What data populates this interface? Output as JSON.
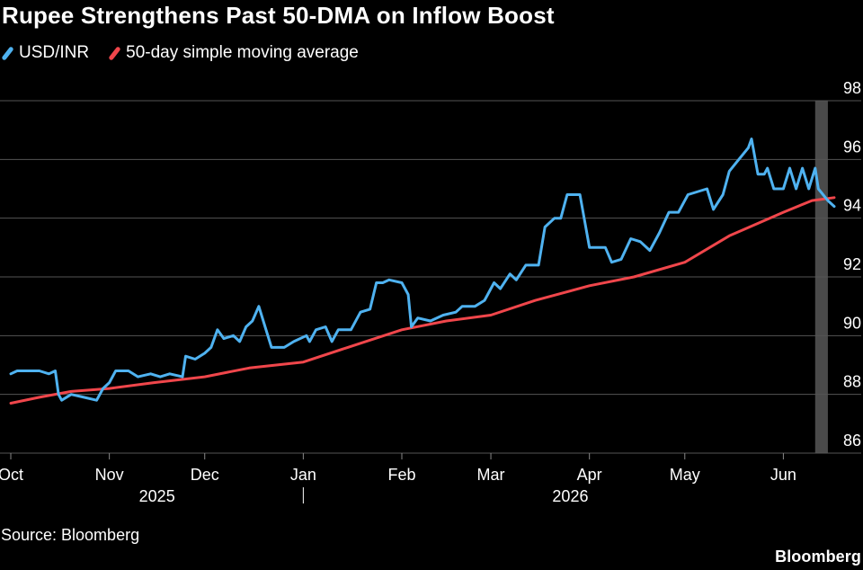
{
  "header": {
    "title": "Rupee Strengthens Past 50-DMA on Inflow Boost"
  },
  "footer": {
    "source": "Source: Bloomberg",
    "brand": "Bloomberg"
  },
  "colors": {
    "background": "#000000",
    "usdinr": "#4fb2f0",
    "sma": "#f0464b",
    "grid": "#555555",
    "highlight": "#4a4a4a"
  },
  "chart_data": {
    "type": "line",
    "legend_placement": "top-left",
    "grid": true,
    "ylim": [
      86,
      98
    ],
    "yticks": [
      98,
      96,
      94,
      92,
      90,
      88,
      86
    ],
    "x_range": [
      "2025-10-01",
      "2026-06-17"
    ],
    "x_ticks": [
      {
        "label": "Oct",
        "date": "2025-10-01"
      },
      {
        "label": "Nov",
        "date": "2025-11-01"
      },
      {
        "label": "Dec",
        "date": "2025-12-01"
      },
      {
        "label": "Jan",
        "date": "2026-01-01"
      },
      {
        "label": "Feb",
        "date": "2026-02-01"
      },
      {
        "label": "Mar",
        "date": "2026-03-01"
      },
      {
        "label": "Apr",
        "date": "2026-04-01"
      },
      {
        "label": "May",
        "date": "2026-05-01"
      },
      {
        "label": "Jun",
        "date": "2026-06-01"
      }
    ],
    "year_labels": [
      {
        "label": "2025",
        "date": "2025-11-16"
      },
      {
        "label": "2026",
        "date": "2026-03-26"
      }
    ],
    "year_separator_date": "2026-01-01",
    "highlight_range": [
      "2026-06-11",
      "2026-06-15"
    ],
    "series": [
      {
        "name": "USD/INR",
        "color": "#4fb2f0",
        "points": [
          [
            "2025-10-01",
            88.7
          ],
          [
            "2025-10-03",
            88.8
          ],
          [
            "2025-10-07",
            88.8
          ],
          [
            "2025-10-10",
            88.8
          ],
          [
            "2025-10-13",
            88.7
          ],
          [
            "2025-10-15",
            88.8
          ],
          [
            "2025-10-16",
            88.0
          ],
          [
            "2025-10-17",
            87.8
          ],
          [
            "2025-10-20",
            88.0
          ],
          [
            "2025-10-24",
            87.9
          ],
          [
            "2025-10-28",
            87.8
          ],
          [
            "2025-10-30",
            88.2
          ],
          [
            "2025-11-01",
            88.4
          ],
          [
            "2025-11-03",
            88.8
          ],
          [
            "2025-11-07",
            88.8
          ],
          [
            "2025-11-10",
            88.6
          ],
          [
            "2025-11-14",
            88.7
          ],
          [
            "2025-11-17",
            88.6
          ],
          [
            "2025-11-20",
            88.7
          ],
          [
            "2025-11-24",
            88.6
          ],
          [
            "2025-11-25",
            89.3
          ],
          [
            "2025-11-28",
            89.2
          ],
          [
            "2025-12-01",
            89.4
          ],
          [
            "2025-12-03",
            89.6
          ],
          [
            "2025-12-05",
            90.2
          ],
          [
            "2025-12-07",
            89.9
          ],
          [
            "2025-12-10",
            90.0
          ],
          [
            "2025-12-12",
            89.8
          ],
          [
            "2025-12-14",
            90.3
          ],
          [
            "2025-12-16",
            90.5
          ],
          [
            "2025-12-18",
            91.0
          ],
          [
            "2025-12-20",
            90.3
          ],
          [
            "2025-12-22",
            89.6
          ],
          [
            "2025-12-26",
            89.6
          ],
          [
            "2025-12-29",
            89.8
          ],
          [
            "2026-01-02",
            90.0
          ],
          [
            "2026-01-03",
            89.8
          ],
          [
            "2026-01-05",
            90.2
          ],
          [
            "2026-01-08",
            90.3
          ],
          [
            "2026-01-10",
            89.8
          ],
          [
            "2026-01-12",
            90.2
          ],
          [
            "2026-01-16",
            90.2
          ],
          [
            "2026-01-19",
            90.8
          ],
          [
            "2026-01-22",
            90.9
          ],
          [
            "2026-01-24",
            91.8
          ],
          [
            "2026-01-26",
            91.8
          ],
          [
            "2026-01-28",
            91.9
          ],
          [
            "2026-02-01",
            91.8
          ],
          [
            "2026-02-03",
            91.4
          ],
          [
            "2026-02-04",
            90.3
          ],
          [
            "2026-02-06",
            90.6
          ],
          [
            "2026-02-10",
            90.5
          ],
          [
            "2026-02-14",
            90.7
          ],
          [
            "2026-02-18",
            90.8
          ],
          [
            "2026-02-20",
            91.0
          ],
          [
            "2026-02-24",
            91.0
          ],
          [
            "2026-02-27",
            91.2
          ],
          [
            "2026-03-02",
            91.8
          ],
          [
            "2026-03-04",
            91.6
          ],
          [
            "2026-03-07",
            92.1
          ],
          [
            "2026-03-09",
            91.9
          ],
          [
            "2026-03-12",
            92.4
          ],
          [
            "2026-03-16",
            92.4
          ],
          [
            "2026-03-18",
            93.7
          ],
          [
            "2026-03-21",
            94.0
          ],
          [
            "2026-03-23",
            94.0
          ],
          [
            "2026-03-25",
            94.8
          ],
          [
            "2026-03-29",
            94.8
          ],
          [
            "2026-04-01",
            93.0
          ],
          [
            "2026-04-06",
            93.0
          ],
          [
            "2026-04-08",
            92.5
          ],
          [
            "2026-04-11",
            92.6
          ],
          [
            "2026-04-14",
            93.3
          ],
          [
            "2026-04-17",
            93.2
          ],
          [
            "2026-04-20",
            92.9
          ],
          [
            "2026-04-23",
            93.5
          ],
          [
            "2026-04-26",
            94.2
          ],
          [
            "2026-04-29",
            94.2
          ],
          [
            "2026-05-02",
            94.8
          ],
          [
            "2026-05-08",
            95.0
          ],
          [
            "2026-05-10",
            94.3
          ],
          [
            "2026-05-13",
            94.8
          ],
          [
            "2026-05-15",
            95.6
          ],
          [
            "2026-05-18",
            96.0
          ],
          [
            "2026-05-21",
            96.4
          ],
          [
            "2026-05-22",
            96.7
          ],
          [
            "2026-05-24",
            95.5
          ],
          [
            "2026-05-26",
            95.5
          ],
          [
            "2026-05-27",
            95.7
          ],
          [
            "2026-05-29",
            95.0
          ],
          [
            "2026-06-01",
            95.0
          ],
          [
            "2026-06-03",
            95.7
          ],
          [
            "2026-06-05",
            95.0
          ],
          [
            "2026-06-07",
            95.7
          ],
          [
            "2026-06-09",
            95.0
          ],
          [
            "2026-06-11",
            95.7
          ],
          [
            "2026-06-12",
            95.0
          ],
          [
            "2026-06-15",
            94.6
          ],
          [
            "2026-06-17",
            94.4
          ]
        ]
      },
      {
        "name": "50-day simple moving average",
        "color": "#f0464b",
        "points": [
          [
            "2025-10-01",
            87.7
          ],
          [
            "2025-10-10",
            87.9
          ],
          [
            "2025-10-20",
            88.1
          ],
          [
            "2025-11-01",
            88.2
          ],
          [
            "2025-11-15",
            88.4
          ],
          [
            "2025-12-01",
            88.6
          ],
          [
            "2025-12-15",
            88.9
          ],
          [
            "2026-01-01",
            89.1
          ],
          [
            "2026-01-15",
            89.6
          ],
          [
            "2026-02-01",
            90.2
          ],
          [
            "2026-02-15",
            90.5
          ],
          [
            "2026-03-01",
            90.7
          ],
          [
            "2026-03-15",
            91.2
          ],
          [
            "2026-04-01",
            91.7
          ],
          [
            "2026-04-15",
            92.0
          ],
          [
            "2026-05-01",
            92.5
          ],
          [
            "2026-05-15",
            93.4
          ],
          [
            "2026-06-01",
            94.2
          ],
          [
            "2026-06-10",
            94.6
          ],
          [
            "2026-06-17",
            94.7
          ]
        ]
      }
    ]
  }
}
